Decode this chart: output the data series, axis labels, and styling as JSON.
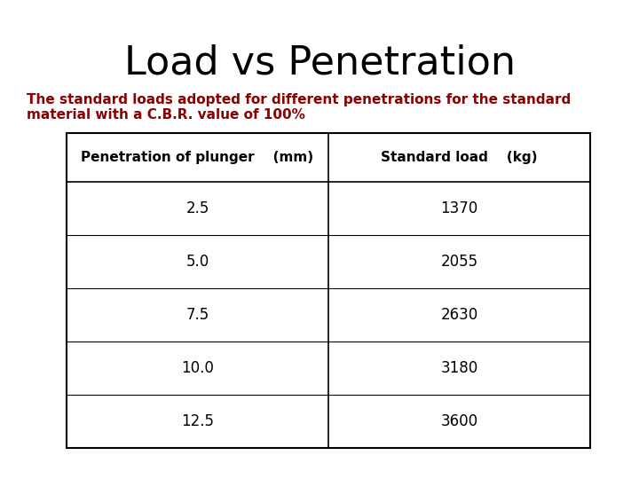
{
  "title": "Load vs Penetration",
  "subtitle_line1": "The standard loads adopted for different penetrations for the standard",
  "subtitle_line2": "material with a C.B.R. value of 100%",
  "subtitle_color": "#8B0000",
  "title_color": "#000000",
  "background_color": "#ffffff",
  "col_header1": "Penetration of plunger    (mm)",
  "col_header2": "Standard load    (kg)",
  "rows": [
    [
      "2.5",
      "1370"
    ],
    [
      "5.0",
      "2055"
    ],
    [
      "7.5",
      "2630"
    ],
    [
      "10.0",
      "3180"
    ],
    [
      "12.5",
      "3600"
    ]
  ]
}
